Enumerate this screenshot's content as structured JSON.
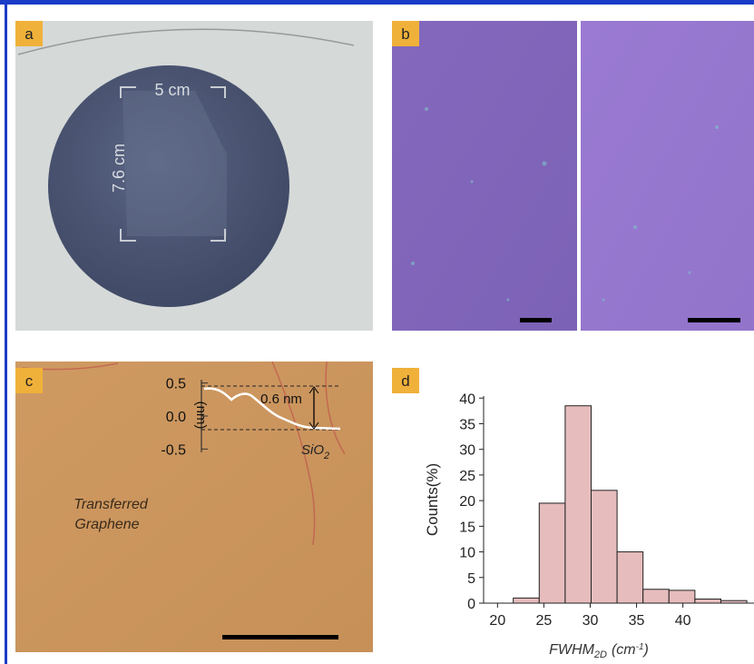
{
  "panels": {
    "a": {
      "label": "a",
      "width_label": "5 cm",
      "height_label": "7.6 cm"
    },
    "b": {
      "label": "b"
    },
    "c": {
      "label": "c",
      "inset": {
        "ylim": [
          -0.55,
          0.55
        ],
        "yticks": [
          0.5,
          {
            "value": 0,
            "label": "0.0"
          },
          -0.5
        ],
        "ylabel": "(nm)",
        "step_label": "0.6 nm",
        "substrate": "SiO",
        "substrate_sub": "2"
      },
      "caption": [
        "Transferred",
        "Graphene"
      ]
    },
    "d": {
      "label": "d"
    }
  },
  "chart_data": {
    "type": "histogram",
    "bins": [
      21.7,
      24.5,
      27.3,
      30.1,
      32.9,
      35.7,
      38.5,
      41.3,
      44.1,
      46.9
    ],
    "values": [
      1,
      19.5,
      38.5,
      22,
      10,
      2.7,
      2.5,
      0.8,
      0.5
    ],
    "color": "#e6bcbd",
    "xlim": [
      18.5,
      46.5
    ],
    "ylim": [
      0,
      40.4
    ],
    "xticks": [
      20,
      25,
      30,
      35,
      40
    ],
    "yticks": [
      0,
      5,
      10,
      15,
      20,
      25,
      30,
      35,
      40
    ],
    "ylabel": "Counts(%)",
    "xlabel": {
      "text": "FWHM",
      "sub": "2D",
      "unit": "(cm",
      "sup": "-1",
      "close": ")"
    }
  }
}
